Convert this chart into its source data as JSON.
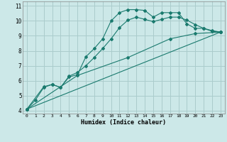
{
  "xlabel": "Humidex (Indice chaleur)",
  "xlim": [
    -0.5,
    23.5
  ],
  "ylim": [
    3.8,
    11.3
  ],
  "xticks": [
    0,
    1,
    2,
    3,
    4,
    5,
    6,
    7,
    8,
    9,
    10,
    11,
    12,
    13,
    14,
    15,
    16,
    17,
    18,
    19,
    20,
    21,
    22,
    23
  ],
  "yticks": [
    4,
    5,
    6,
    7,
    8,
    9,
    10,
    11
  ],
  "bg_color": "#cce8e8",
  "grid_color": "#aacccc",
  "line_color": "#1a7a6e",
  "curve1_x": [
    0,
    1,
    2,
    3,
    4,
    5,
    6,
    7,
    8,
    9,
    10,
    11,
    12,
    13,
    14,
    15,
    16,
    17,
    18,
    19,
    20,
    21,
    22,
    23
  ],
  "curve1_y": [
    4.1,
    4.7,
    5.55,
    5.75,
    5.55,
    6.25,
    6.4,
    7.6,
    8.15,
    8.8,
    10.0,
    10.55,
    10.75,
    10.75,
    10.7,
    10.25,
    10.55,
    10.55,
    10.55,
    9.8,
    9.5,
    9.5,
    9.3,
    9.25
  ],
  "curve2_x": [
    0,
    2,
    3,
    4,
    5,
    6,
    7,
    8,
    9,
    10,
    11,
    12,
    13,
    14,
    15,
    16,
    17,
    18,
    19,
    20,
    21,
    22,
    23
  ],
  "curve2_y": [
    4.1,
    5.6,
    5.75,
    5.55,
    6.3,
    6.55,
    7.0,
    7.55,
    8.15,
    8.8,
    9.55,
    10.05,
    10.25,
    10.1,
    9.95,
    10.1,
    10.25,
    10.25,
    10.05,
    9.75,
    9.5,
    9.35,
    9.25
  ],
  "curve3_x": [
    0,
    23
  ],
  "curve3_y": [
    4.1,
    9.25
  ],
  "curve4_x": [
    0,
    6,
    12,
    17,
    20,
    23
  ],
  "curve4_y": [
    4.1,
    6.35,
    7.55,
    8.8,
    9.15,
    9.25
  ]
}
